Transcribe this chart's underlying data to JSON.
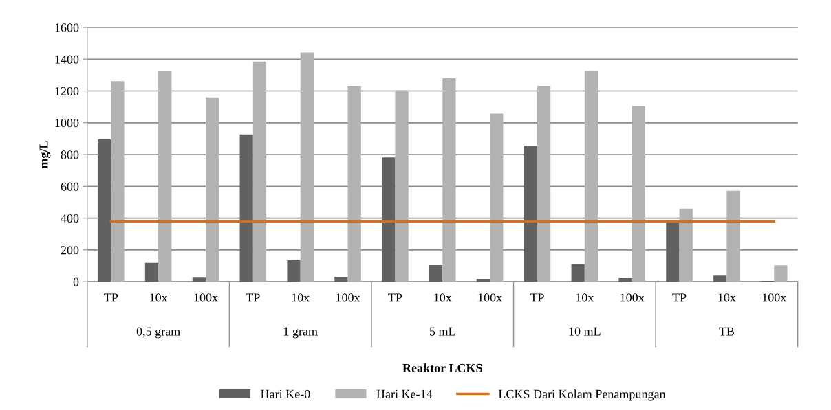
{
  "chart_data": {
    "type": "bar",
    "xlabel": "Reaktor LCKS",
    "ylabel": "mg/L",
    "categories": [
      "TP",
      "10x",
      "100x",
      "TP",
      "10x",
      "100x",
      "TP",
      "10x",
      "100x",
      "TP",
      "10x",
      "100x",
      "TP",
      "10x",
      "100x"
    ],
    "annotations": [
      "0,5 gram",
      "1 gram",
      "5 mL",
      "10 mL",
      "TB"
    ],
    "series": [
      {
        "name": "Hari Ke-0",
        "color": "#616161",
        "values": [
          895,
          118,
          25,
          927,
          135,
          30,
          782,
          104,
          18,
          855,
          110,
          22,
          372,
          38,
          5
        ]
      },
      {
        "name": "Hari Ke-14",
        "color": "#b2b2b2",
        "values": [
          1262,
          1323,
          1160,
          1385,
          1442,
          1233,
          1205,
          1280,
          1057,
          1233,
          1325,
          1105,
          460,
          572,
          103
        ]
      },
      {
        "name": "LCKS Dari Kolam Penampungan",
        "type": "line",
        "color": "#e36c0a",
        "values": [
          380,
          380,
          380,
          380,
          380,
          380,
          380,
          380,
          380,
          380,
          380,
          380,
          380,
          380,
          380
        ]
      }
    ],
    "ylim": [
      0,
      1600
    ],
    "yticks": [
      0,
      200,
      400,
      600,
      800,
      1000,
      1200,
      1400,
      1600
    ],
    "grid": "y",
    "legend": "bottom"
  }
}
